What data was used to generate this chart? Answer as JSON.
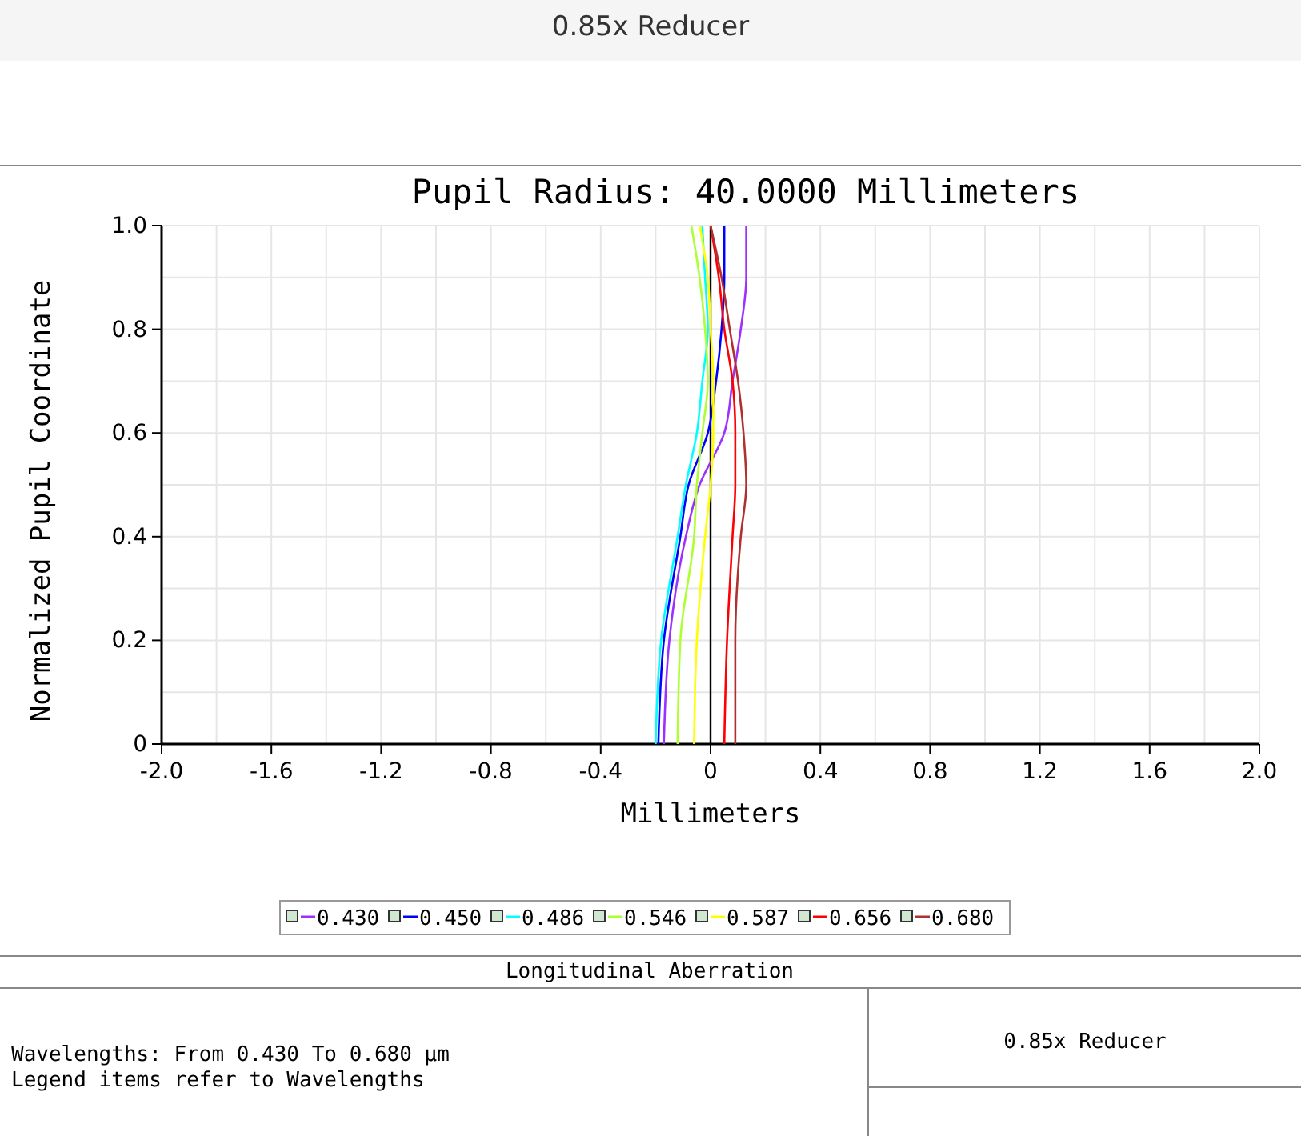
{
  "chart_data": {
    "type": "line",
    "title": "0.85x Reducer",
    "subtitle": "Pupil Radius: 40.0000 Millimeters",
    "xlabel": "Millimeters",
    "ylabel": "Normalized Pupil Coordinate",
    "xlim": [
      -2,
      2
    ],
    "ylim": [
      0,
      1
    ],
    "xticks": [
      {
        "value": -2,
        "label": "-2.0"
      },
      {
        "value": -1.8,
        "label": null
      },
      -1.6,
      {
        "value": -1.4,
        "label": null
      },
      -1.2,
      {
        "value": -1.0,
        "label": null
      },
      -0.8,
      {
        "value": -0.6,
        "label": null
      },
      -0.4,
      {
        "value": -0.2,
        "label": null
      },
      {
        "value": 0,
        "label": "0"
      },
      {
        "value": 0.2,
        "label": null
      },
      0.4,
      {
        "value": 0.6,
        "label": null
      },
      0.8,
      {
        "value": 1.0,
        "label": null
      },
      1.2,
      {
        "value": 1.4,
        "label": null
      },
      1.6,
      {
        "value": 1.8,
        "label": null
      },
      {
        "value": 2,
        "label": "2.0"
      }
    ],
    "yticks": [
      {
        "value": 0,
        "label": "0"
      },
      {
        "value": 0.1,
        "label": null
      },
      0.2,
      {
        "value": 0.3,
        "label": null
      },
      0.4,
      {
        "value": 0.5,
        "label": null
      },
      0.6,
      {
        "value": 0.7,
        "label": null
      },
      0.8,
      {
        "value": 0.9,
        "label": null
      },
      {
        "value": 1,
        "label": "1.0"
      }
    ],
    "grid": true,
    "legend": "bottom",
    "ref_lines": [
      {
        "axis": "x",
        "value": 0,
        "color": "#000000"
      }
    ],
    "series": [
      {
        "name": "0.430",
        "color": "#9b30ff",
        "x": [
          -0.17,
          -0.15,
          -0.09,
          -0.04,
          0.05,
          0.08,
          0.11,
          0.13,
          0.13
        ],
        "values": [
          0,
          0.2,
          0.4,
          0.5,
          0.6,
          0.7,
          0.8,
          0.9,
          1.0
        ]
      },
      {
        "name": "0.450",
        "color": "#0000ff",
        "x": [
          -0.19,
          -0.17,
          -0.11,
          -0.08,
          -0.01,
          0.02,
          0.04,
          0.05,
          0.05
        ],
        "values": [
          0,
          0.2,
          0.4,
          0.5,
          0.6,
          0.7,
          0.8,
          0.9,
          1.0
        ]
      },
      {
        "name": "0.486",
        "color": "#00ffff",
        "x": [
          -0.2,
          -0.18,
          -0.12,
          -0.09,
          -0.05,
          -0.03,
          -0.01,
          -0.02,
          -0.03
        ],
        "values": [
          0,
          0.2,
          0.4,
          0.5,
          0.6,
          0.7,
          0.8,
          0.9,
          1.0
        ]
      },
      {
        "name": "0.546",
        "color": "#adff2f",
        "x": [
          -0.12,
          -0.11,
          -0.06,
          -0.05,
          -0.03,
          -0.01,
          -0.02,
          -0.04,
          -0.07
        ],
        "values": [
          0,
          0.2,
          0.4,
          0.5,
          0.6,
          0.7,
          0.8,
          0.9,
          1.0
        ]
      },
      {
        "name": "0.587",
        "color": "#ffff00",
        "x": [
          -0.06,
          -0.05,
          -0.02,
          0.0,
          0.01,
          0.01,
          0.0,
          -0.01,
          -0.04
        ],
        "values": [
          0,
          0.2,
          0.4,
          0.5,
          0.6,
          0.7,
          0.8,
          0.9,
          1.0
        ]
      },
      {
        "name": "0.656",
        "color": "#ff0000",
        "x": [
          0.05,
          0.06,
          0.08,
          0.09,
          0.09,
          0.08,
          0.05,
          0.03,
          0.0
        ],
        "values": [
          0,
          0.2,
          0.4,
          0.5,
          0.6,
          0.7,
          0.8,
          0.9,
          1.0
        ]
      },
      {
        "name": "0.680",
        "color": "#b03030",
        "x": [
          0.09,
          0.09,
          0.11,
          0.13,
          0.12,
          0.1,
          0.07,
          0.04,
          0.0
        ],
        "values": [
          0,
          0.2,
          0.4,
          0.5,
          0.6,
          0.7,
          0.8,
          0.9,
          1.0
        ]
      }
    ],
    "annotations": [
      "Longitudinal Aberration",
      "Wavelengths: From 0.430 To 0.680 µm",
      "Legend items refer to Wavelengths",
      "0.85x Reducer"
    ]
  }
}
